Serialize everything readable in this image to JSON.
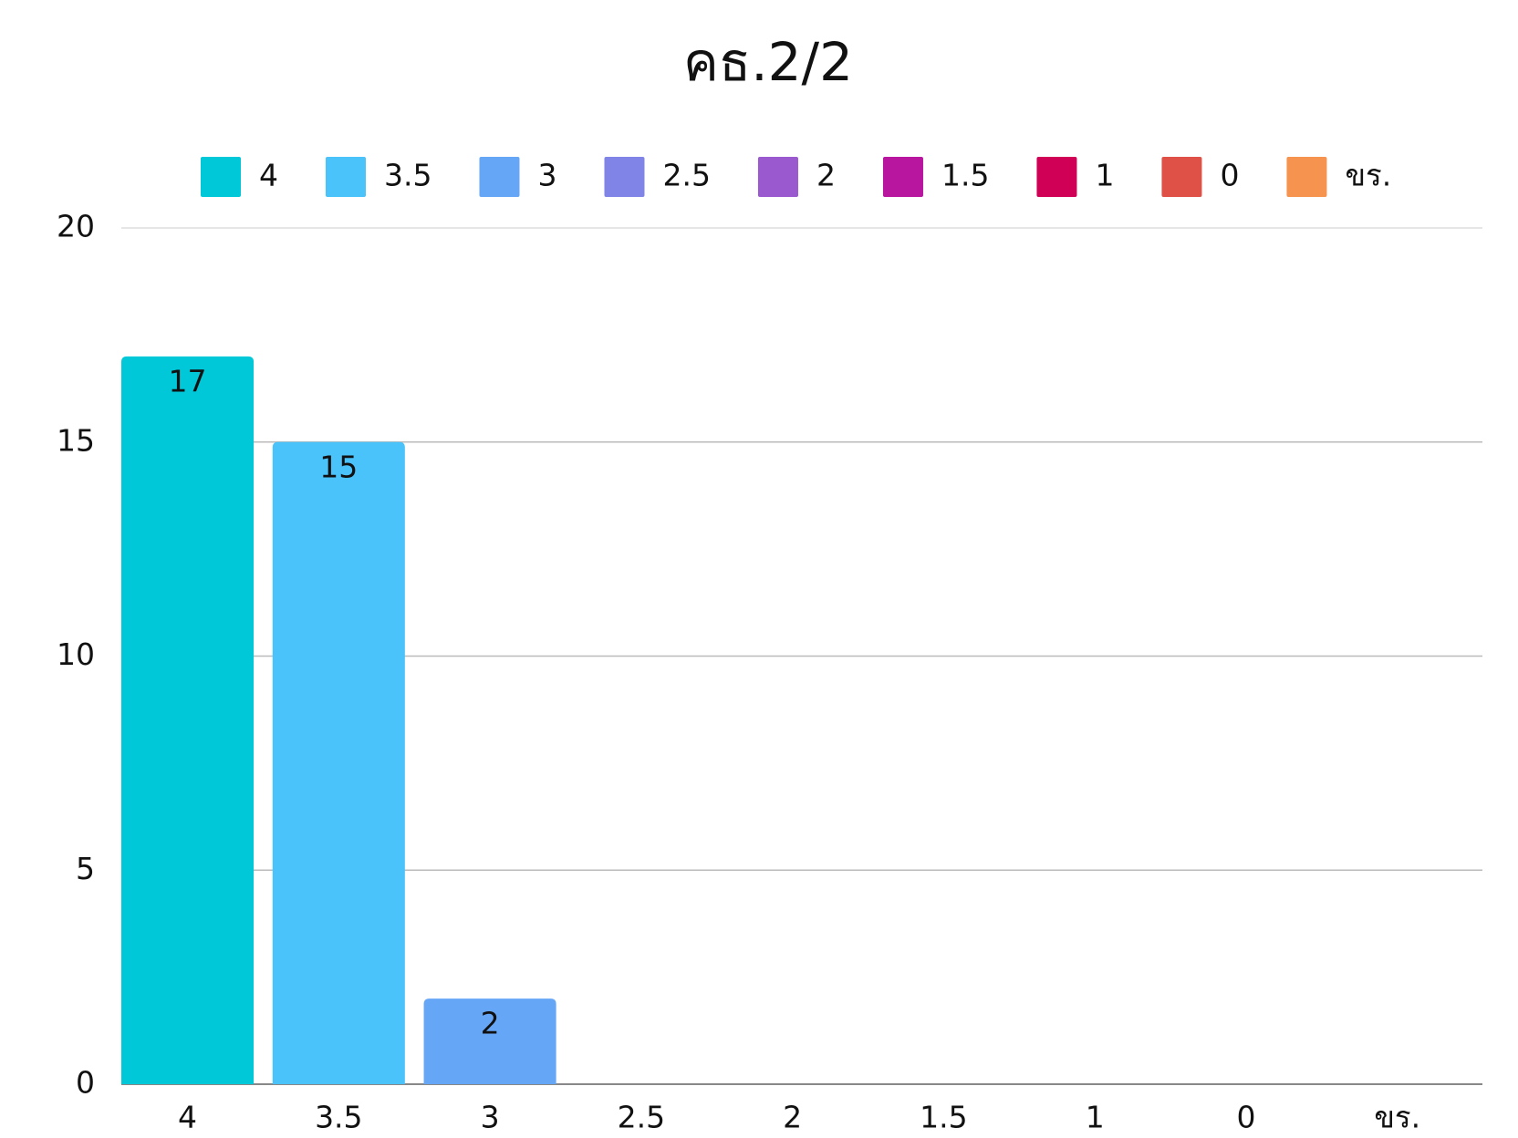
{
  "chart_data": {
    "type": "bar",
    "title": "คธ.2/2",
    "categories": [
      "4",
      "3.5",
      "3",
      "2.5",
      "2",
      "1.5",
      "1",
      "0",
      "ขร."
    ],
    "values": [
      17,
      15,
      2,
      0,
      0,
      0,
      0,
      0,
      0
    ],
    "colors": [
      "#00c8d9",
      "#4ac3fb",
      "#66a6f7",
      "#7f84e6",
      "#9b59cf",
      "#b9169f",
      "#cf0055",
      "#df5146",
      "#f5934f"
    ],
    "ylim": [
      0,
      20
    ],
    "yticks": [
      0,
      5,
      10,
      15,
      20
    ],
    "grid": true,
    "legend": "top"
  }
}
